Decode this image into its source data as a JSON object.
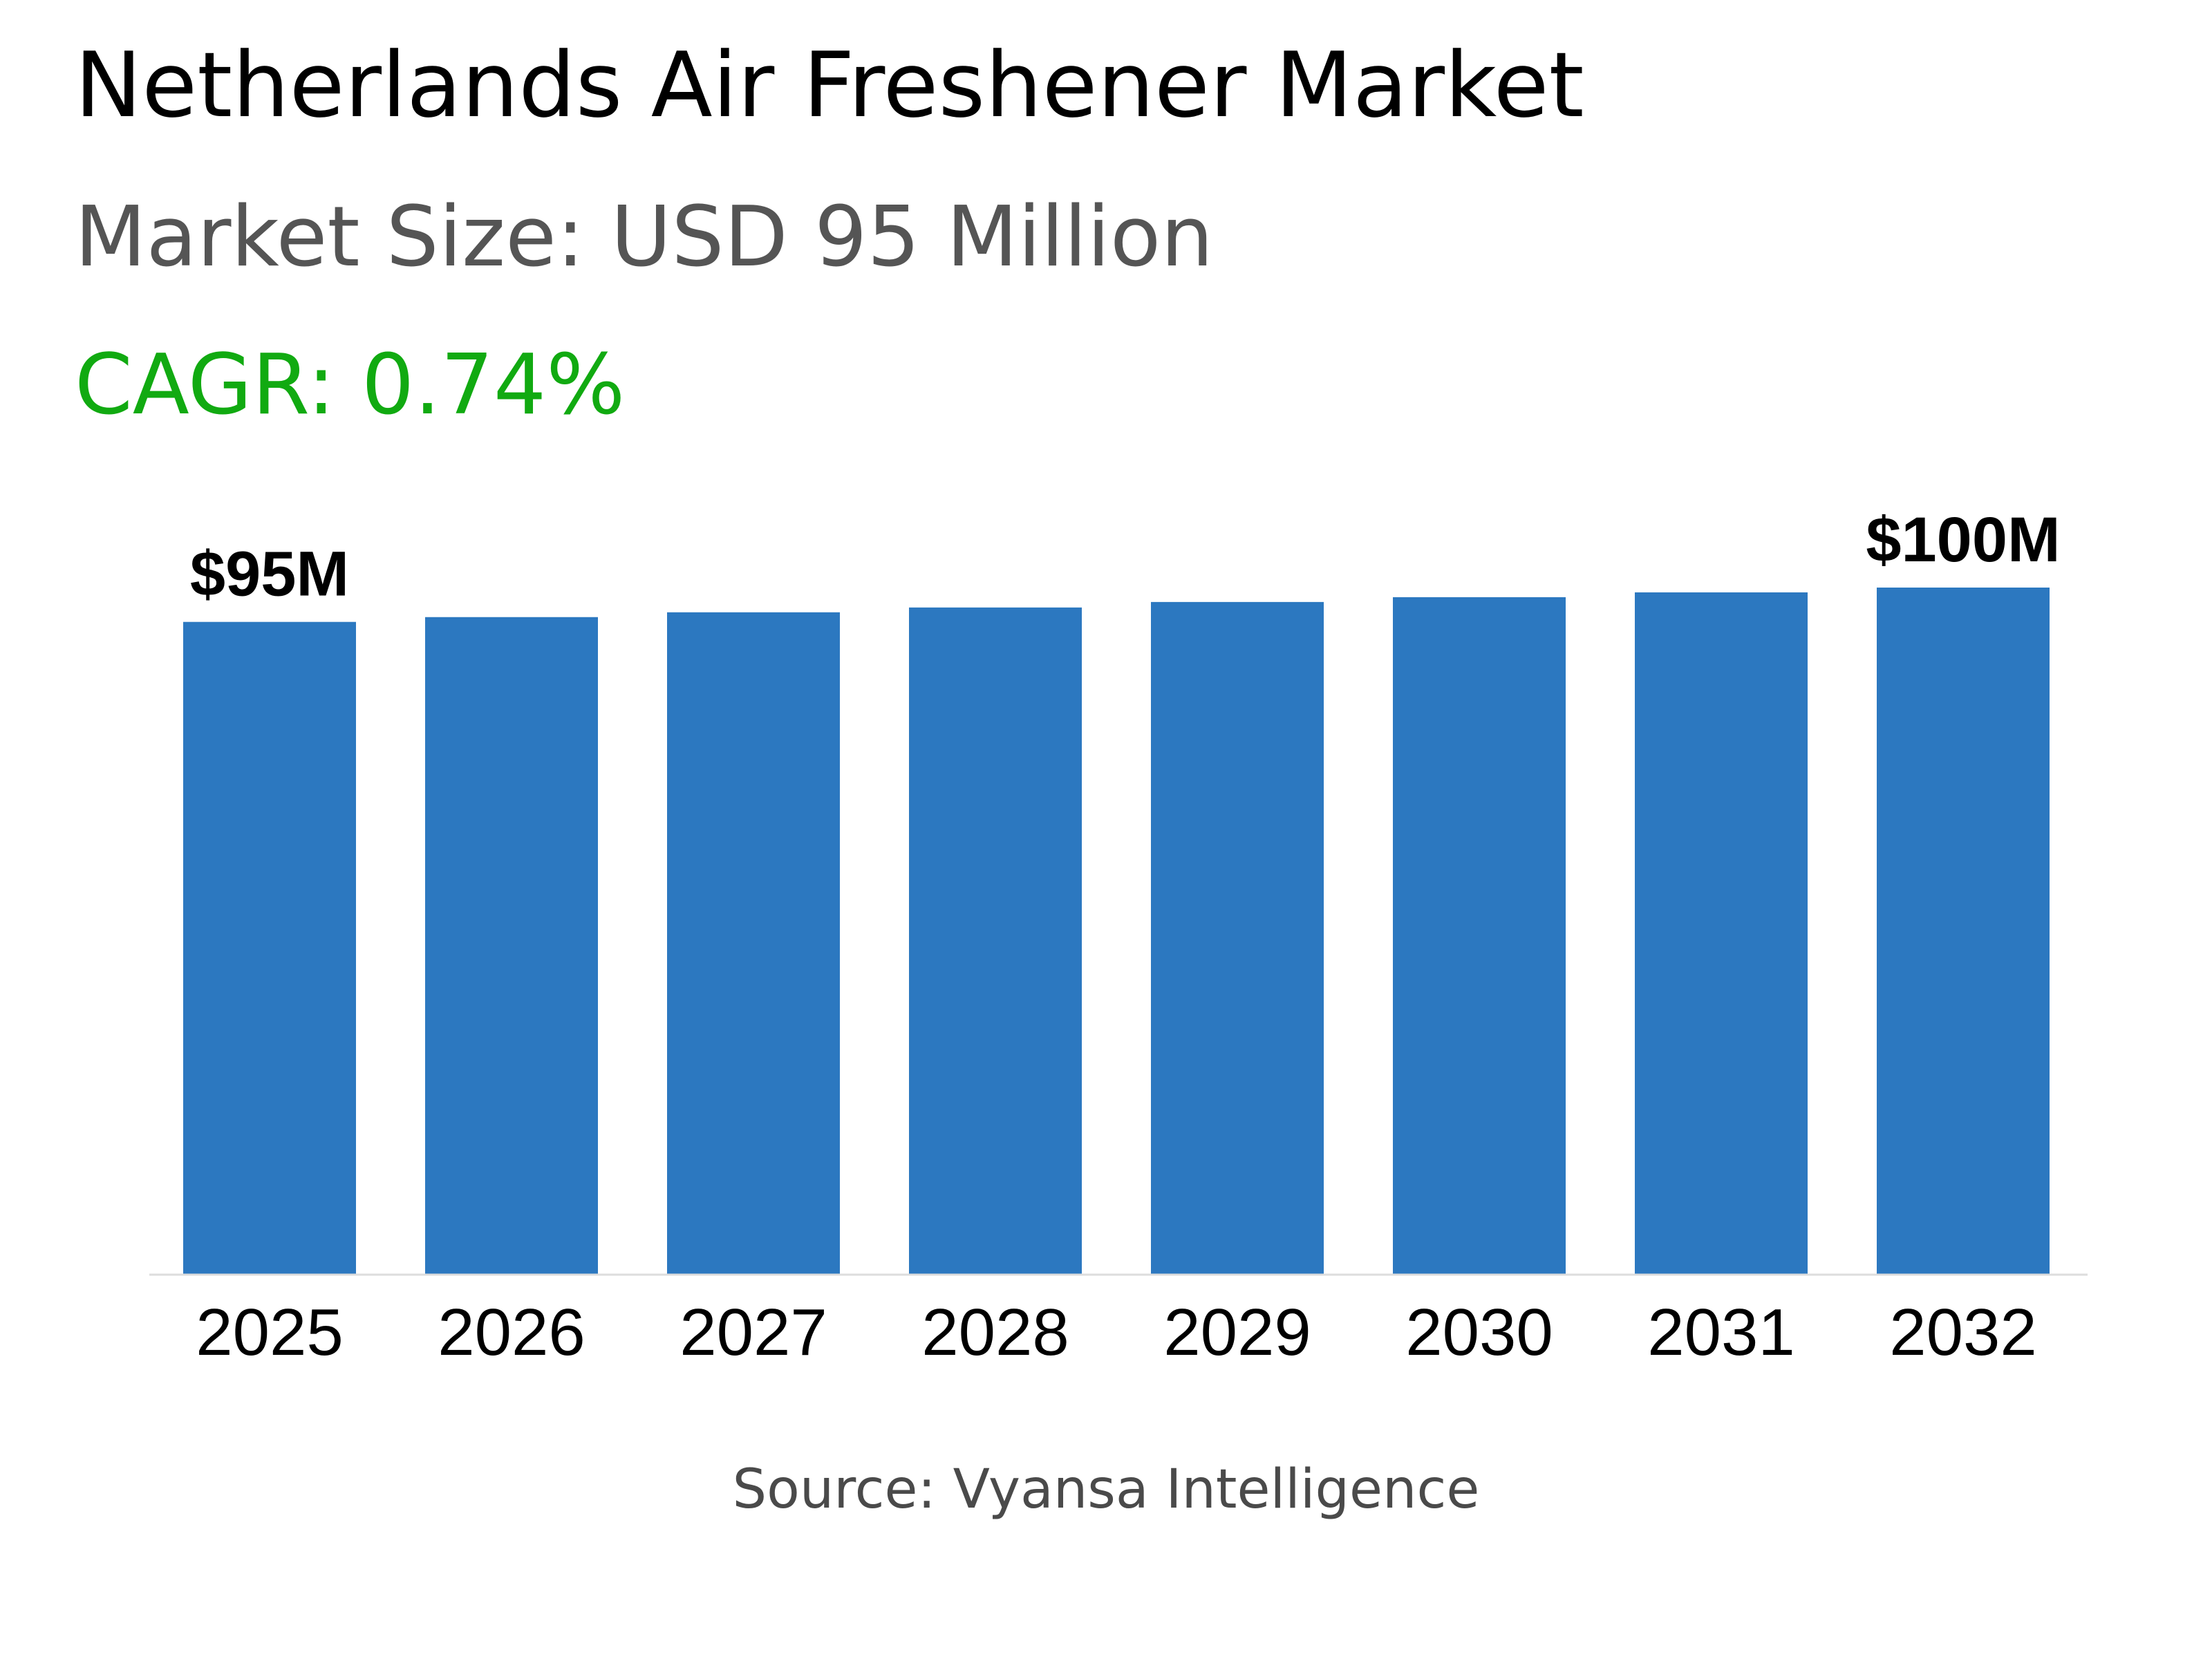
{
  "header": {
    "title": "Netherlands Air Freshener Market",
    "subtitle": "Market Size: USD 95 Million",
    "cagr": "CAGR: 0.74%"
  },
  "footer": {
    "source": "Source: Vyansa Intelligence"
  },
  "colors": {
    "bar": "#2c78c0",
    "cagr": "#11aa11",
    "subtitle": "#555555",
    "axis": "#dddddd"
  },
  "chart_data": {
    "type": "bar",
    "categories": [
      "2025",
      "2026",
      "2027",
      "2028",
      "2029",
      "2030",
      "2031",
      "2032"
    ],
    "values": [
      95,
      95.7,
      96.4,
      97.1,
      97.9,
      98.6,
      99.3,
      100
    ],
    "data_labels": [
      {
        "category": "2025",
        "text": "$95M"
      },
      {
        "category": "2032",
        "text": "$100M"
      }
    ],
    "title": "Netherlands Air Freshener Market",
    "xlabel": "",
    "ylabel": "",
    "ylim": [
      0,
      100
    ],
    "grid": false,
    "legend": "none"
  }
}
